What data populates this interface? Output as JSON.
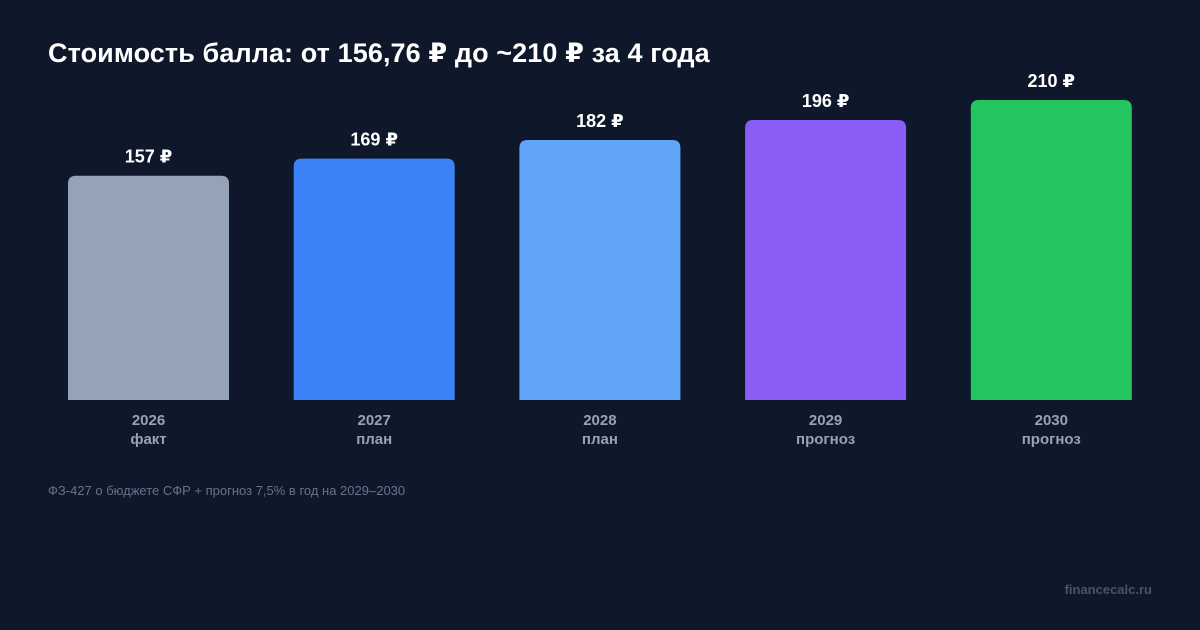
{
  "title": "Стоимость балла: от 156,76 ₽ до ~210 ₽ за 4 года",
  "footnote": "ФЗ-427 о бюджете СФР + прогноз 7,5% в год на 2029–2030",
  "watermark": "financecalc.ru",
  "chart_data": {
    "type": "bar",
    "title": "Стоимость балла: от 156,76 ₽ до ~210 ₽ за 4 года",
    "categories": [
      "2026",
      "2027",
      "2028",
      "2029",
      "2030"
    ],
    "sublabels": [
      "факт",
      "план",
      "план",
      "прогноз",
      "прогноз"
    ],
    "values": [
      157,
      169,
      182,
      196,
      210
    ],
    "value_labels": [
      "157 ₽",
      "169 ₽",
      "182 ₽",
      "196 ₽",
      "210 ₽"
    ],
    "colors": [
      "#94a3b8",
      "#3b82f6",
      "#60a5fa",
      "#8b5cf6",
      "#22c55e"
    ],
    "xlabel": "",
    "ylabel": "",
    "ylim": [
      0,
      210
    ],
    "grid": false,
    "legend": "none"
  }
}
